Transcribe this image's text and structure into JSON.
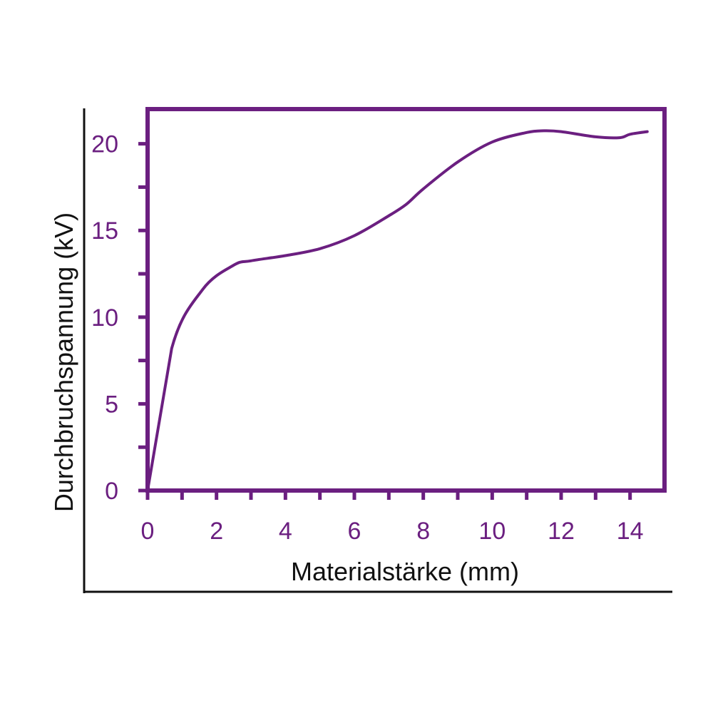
{
  "colors": {
    "accent": "#6b1f80",
    "frame": "#111111"
  },
  "chart_data": {
    "type": "line",
    "title": "",
    "xlabel": "Materialstärke (mm)",
    "ylabel": "Durchbruchspannung (kV)",
    "xlim": [
      0,
      15
    ],
    "ylim": [
      0,
      22
    ],
    "x_ticks": [
      0,
      2,
      4,
      6,
      8,
      10,
      12,
      14
    ],
    "y_ticks": [
      0,
      5,
      10,
      15,
      20
    ],
    "x_tick_labels": [
      "0",
      "2",
      "4",
      "6",
      "8",
      "10",
      "12",
      "14"
    ],
    "y_tick_labels": [
      "0",
      "5",
      "10",
      "15",
      "20"
    ],
    "grid": false,
    "legend": "none",
    "series": [
      {
        "x": [
          0,
          0.7,
          1.6,
          2.5,
          3.0,
          4.0,
          5.0,
          6.0,
          7.0,
          7.5,
          8.0,
          9.0,
          10.0,
          11.0,
          11.5,
          12.0,
          13.0,
          13.7,
          14.0,
          14.5
        ],
        "y": [
          0,
          8.2,
          11.6,
          13.0,
          13.25,
          13.55,
          13.95,
          14.7,
          15.85,
          16.5,
          17.4,
          18.95,
          20.1,
          20.65,
          20.75,
          20.7,
          20.4,
          20.35,
          20.55,
          20.7
        ]
      }
    ]
  }
}
